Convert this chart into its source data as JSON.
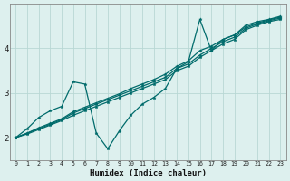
{
  "bg_color": "#ddf0ee",
  "grid_color": "#b8d8d4",
  "line_color": "#006b6b",
  "xlabel": "Humidex (Indice chaleur)",
  "xlim": [
    -0.5,
    23.5
  ],
  "ylim": [
    1.5,
    5.0
  ],
  "yticks": [
    2,
    3,
    4
  ],
  "xticks": [
    0,
    1,
    2,
    3,
    4,
    5,
    6,
    7,
    8,
    9,
    10,
    11,
    12,
    13,
    14,
    15,
    16,
    17,
    18,
    19,
    20,
    21,
    22,
    23
  ],
  "series": [
    {
      "x": [
        0,
        1,
        2,
        3,
        4,
        5,
        6,
        7,
        8,
        9,
        10,
        11,
        12,
        13,
        14,
        15,
        16,
        17,
        18,
        19,
        20,
        21,
        22,
        23
      ],
      "y": [
        2.0,
        2.1,
        2.2,
        2.3,
        2.4,
        2.55,
        2.65,
        2.75,
        2.85,
        2.95,
        3.05,
        3.15,
        3.25,
        3.35,
        3.55,
        3.65,
        3.85,
        4.0,
        4.15,
        4.25,
        4.45,
        4.55,
        4.62,
        4.68
      ]
    },
    {
      "x": [
        0,
        1,
        2,
        3,
        4,
        5,
        6,
        7,
        8,
        9,
        10,
        11,
        12,
        13,
        14,
        15,
        16,
        17,
        18,
        19,
        20,
        21,
        22,
        23
      ],
      "y": [
        2.0,
        2.1,
        2.22,
        2.32,
        2.42,
        2.58,
        2.68,
        2.78,
        2.88,
        2.98,
        3.1,
        3.2,
        3.3,
        3.42,
        3.6,
        3.72,
        3.95,
        4.05,
        4.2,
        4.3,
        4.48,
        4.57,
        4.64,
        4.7
      ]
    },
    {
      "x": [
        0,
        1,
        2,
        3,
        4,
        5,
        6,
        7,
        8,
        9,
        10,
        11,
        12,
        13,
        14,
        15,
        16,
        17,
        18,
        19,
        20,
        21,
        22,
        23
      ],
      "y": [
        2.0,
        2.08,
        2.18,
        2.28,
        2.38,
        2.5,
        2.6,
        2.7,
        2.8,
        2.9,
        3.0,
        3.1,
        3.2,
        3.3,
        3.5,
        3.6,
        3.8,
        3.95,
        4.1,
        4.2,
        4.42,
        4.52,
        4.6,
        4.65
      ]
    },
    {
      "x": [
        0,
        1,
        2,
        3,
        4,
        5,
        6,
        7,
        8,
        9,
        10,
        11,
        12,
        13,
        14,
        15,
        16,
        17,
        18,
        19,
        20,
        21,
        22,
        23
      ],
      "y": [
        2.0,
        2.2,
        2.45,
        2.6,
        2.7,
        3.25,
        3.2,
        2.1,
        1.75,
        2.15,
        2.5,
        2.75,
        2.9,
        3.1,
        3.55,
        3.7,
        4.65,
        3.95,
        4.2,
        4.3,
        4.52,
        4.6,
        4.65,
        4.72
      ]
    }
  ]
}
